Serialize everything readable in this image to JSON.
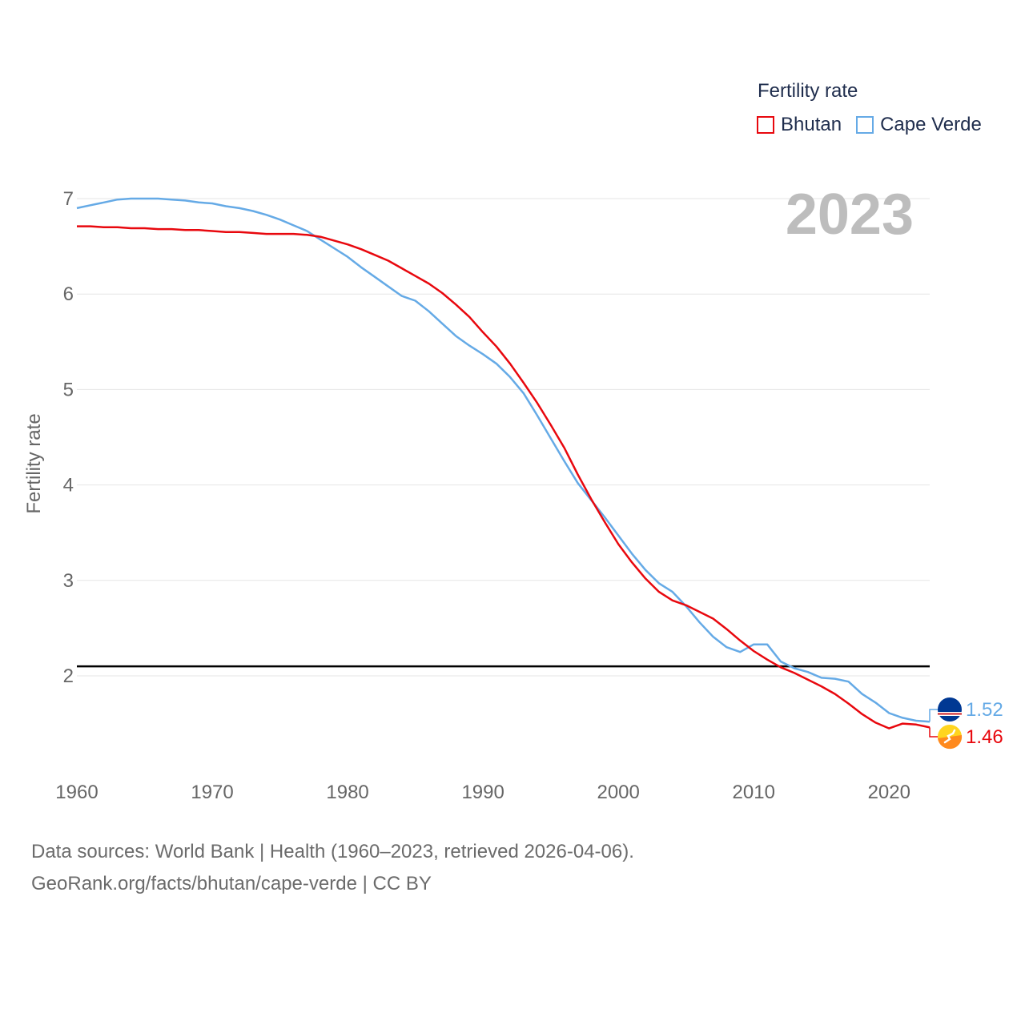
{
  "legend": {
    "title": "Fertility rate",
    "items": [
      {
        "name": "Bhutan",
        "color": "#e8080e"
      },
      {
        "name": "Cape Verde",
        "color": "#65aae6"
      }
    ]
  },
  "year_watermark": "2023",
  "source": {
    "line1": "Data sources: World Bank | Health (1960–2023, retrieved 2026-04-06).",
    "line2": "GeoRank.org/facts/bhutan/cape-verde | CC BY"
  },
  "chart_data": {
    "type": "line",
    "title": "Fertility rate",
    "xlabel": "",
    "ylabel": "Fertility rate",
    "xlim": [
      1960,
      2023
    ],
    "ylim": [
      1.0,
      7.2
    ],
    "x_ticks": [
      1960,
      1970,
      1980,
      1990,
      2000,
      2010,
      2020
    ],
    "y_ticks": [
      2,
      3,
      4,
      5,
      6,
      7
    ],
    "reference_line": {
      "y": 2.1,
      "color": "#000000"
    },
    "x": [
      1960,
      1961,
      1962,
      1963,
      1964,
      1965,
      1966,
      1967,
      1968,
      1969,
      1970,
      1971,
      1972,
      1973,
      1974,
      1975,
      1976,
      1977,
      1978,
      1979,
      1980,
      1981,
      1982,
      1983,
      1984,
      1985,
      1986,
      1987,
      1988,
      1989,
      1990,
      1991,
      1992,
      1993,
      1994,
      1995,
      1996,
      1997,
      1998,
      1999,
      2000,
      2001,
      2002,
      2003,
      2004,
      2005,
      2006,
      2007,
      2008,
      2009,
      2010,
      2011,
      2012,
      2013,
      2014,
      2015,
      2016,
      2017,
      2018,
      2019,
      2020,
      2021,
      2022,
      2023
    ],
    "series": [
      {
        "name": "Bhutan",
        "color": "#e8080e",
        "end_label": "1.46",
        "values": [
          6.71,
          6.71,
          6.7,
          6.7,
          6.69,
          6.69,
          6.68,
          6.68,
          6.67,
          6.67,
          6.66,
          6.65,
          6.65,
          6.64,
          6.63,
          6.63,
          6.63,
          6.62,
          6.6,
          6.56,
          6.52,
          6.47,
          6.41,
          6.35,
          6.27,
          6.19,
          6.11,
          6.01,
          5.89,
          5.76,
          5.6,
          5.45,
          5.27,
          5.07,
          4.86,
          4.63,
          4.39,
          4.11,
          3.85,
          3.61,
          3.38,
          3.19,
          3.02,
          2.88,
          2.79,
          2.74,
          2.67,
          2.6,
          2.49,
          2.37,
          2.26,
          2.17,
          2.09,
          2.03,
          1.96,
          1.89,
          1.81,
          1.71,
          1.6,
          1.51,
          1.45,
          1.5,
          1.49,
          1.46
        ]
      },
      {
        "name": "Cape Verde",
        "color": "#65aae6",
        "end_label": "1.52",
        "values": [
          6.9,
          6.93,
          6.96,
          6.99,
          7.0,
          7.0,
          7.0,
          6.99,
          6.98,
          6.96,
          6.95,
          6.92,
          6.9,
          6.87,
          6.83,
          6.78,
          6.72,
          6.66,
          6.57,
          6.48,
          6.39,
          6.28,
          6.18,
          6.08,
          5.98,
          5.93,
          5.82,
          5.69,
          5.56,
          5.46,
          5.37,
          5.27,
          5.13,
          4.96,
          4.73,
          4.49,
          4.25,
          4.02,
          3.84,
          3.66,
          3.47,
          3.28,
          3.11,
          2.97,
          2.88,
          2.73,
          2.56,
          2.41,
          2.3,
          2.25,
          2.33,
          2.33,
          2.15,
          2.08,
          2.04,
          1.98,
          1.97,
          1.94,
          1.81,
          1.72,
          1.61,
          1.56,
          1.53,
          1.52
        ]
      }
    ]
  }
}
